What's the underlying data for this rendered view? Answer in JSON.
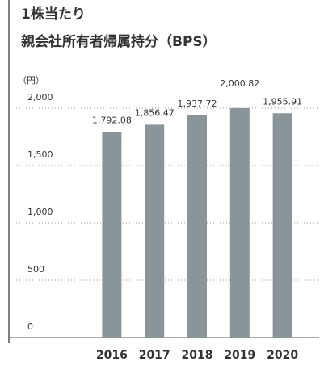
{
  "chart_data": {
    "type": "bar",
    "title": [
      "1株当たり",
      "親会社所有者帰属持分（BPS）"
    ],
    "unit": "（円）",
    "categories": [
      "2016",
      "2017",
      "2018",
      "2019",
      "2020"
    ],
    "values": [
      1792.08,
      1856.47,
      1937.72,
      2000.82,
      1955.91
    ],
    "value_labels": [
      "1,792.08",
      "1,856.47",
      "1,937.72",
      "2,000.82",
      "1,955.91"
    ],
    "color": "#8a9599",
    "ylim": [
      0,
      2000
    ],
    "yticks": [
      0,
      500,
      {
        "value": 1000,
        "label": "1,000"
      },
      {
        "value": 1500,
        "label": "1,500"
      },
      {
        "value": 2000,
        "label": "2,000"
      }
    ],
    "grid": true
  }
}
